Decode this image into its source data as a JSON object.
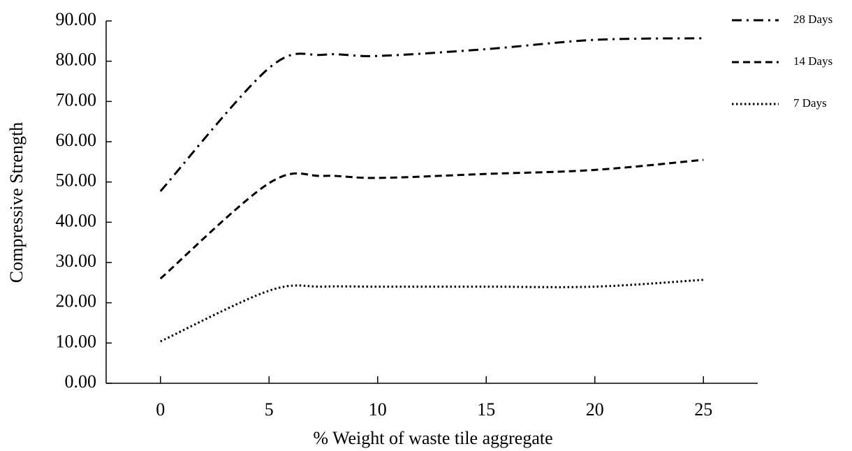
{
  "chart_data": {
    "type": "line",
    "x_label": "% Weight of waste tile aggregate",
    "y_label": "Compressive Strength",
    "x": [
      0,
      5,
      7.5,
      10,
      15,
      20,
      25
    ],
    "series": [
      {
        "name": "28 Days",
        "color": "#000000",
        "style": "dashdot",
        "values": [
          47.7,
          78.3,
          81.6,
          81.3,
          83,
          85.3,
          85.7
        ]
      },
      {
        "name": "14 Days",
        "color": "#000000",
        "style": "dash",
        "values": [
          26,
          49.7,
          51.5,
          51,
          52,
          53,
          55.5
        ]
      },
      {
        "name": "7 Days",
        "color": "#000000",
        "style": "dot",
        "values": [
          10.4,
          23,
          24,
          24,
          24,
          24,
          25.7
        ]
      }
    ],
    "xlim": [
      -2.5,
      27.5
    ],
    "xticks": [
      0,
      5,
      10,
      15,
      20,
      25
    ],
    "ylim": [
      0,
      90
    ],
    "yticks": [
      {
        "value": 0,
        "label": "0.00"
      },
      {
        "value": 10,
        "label": "10.00"
      },
      {
        "value": 20,
        "label": "20.00"
      },
      {
        "value": 30,
        "label": "30.00"
      },
      {
        "value": 40,
        "label": "40.00"
      },
      {
        "value": 50,
        "label": "50.00"
      },
      {
        "value": 60,
        "label": "60.00"
      },
      {
        "value": 70,
        "label": "70.00"
      },
      {
        "value": 80,
        "label": "80.00"
      },
      {
        "value": 90,
        "label": "90.00"
      }
    ],
    "grid": false,
    "legend": "top-right"
  }
}
